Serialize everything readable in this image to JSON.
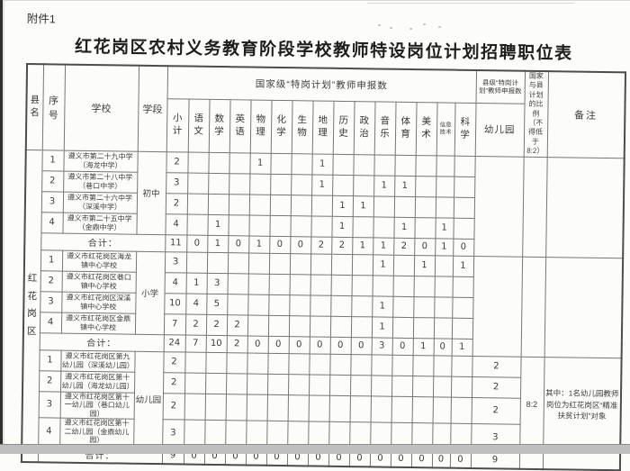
{
  "page": {
    "attachment_label": "附件1",
    "title": "红花岗区农村义务教育阶段学校教师特设岗位计划招聘职位表"
  },
  "table": {
    "header": {
      "county": "县名",
      "serial": "序号",
      "school": "学校",
      "stage": "学段",
      "national_group": "国家级“特岗计划”教师申报数",
      "subjects": [
        "小计",
        "语文",
        "数学",
        "英语",
        "物理",
        "化学",
        "生物",
        "地理",
        "历史",
        "政治",
        "音乐",
        "体育",
        "美术",
        "信息技术",
        "科学"
      ],
      "county_group": "县级“特岗计划”教师申报数",
      "kindergarten": "幼儿园",
      "ratio": "国家与县计划的比例（不得低于8:2）",
      "remark": "备注"
    },
    "county_name": "红花岗区",
    "sections": [
      {
        "stage": "初中",
        "rows": [
          {
            "no": "1",
            "school": "遵义市第二十九中学（海龙中学）",
            "values": [
              "2",
              "",
              "",
              "",
              "1",
              "",
              "",
              "1",
              "",
              "",
              "",
              "",
              "",
              "",
              ""
            ],
            "kg": ""
          },
          {
            "no": "2",
            "school": "遵义市第二十八中学（巷口中学）",
            "values": [
              "3",
              "",
              "",
              "",
              "",
              "",
              "",
              "1",
              "",
              "",
              "1",
              "1",
              "",
              "",
              ""
            ],
            "kg": ""
          },
          {
            "no": "3",
            "school": "遵义市第二十六中学（深溪中学）",
            "values": [
              "2",
              "",
              "",
              "",
              "",
              "",
              "",
              "",
              "1",
              "1",
              "",
              "",
              "",
              "",
              ""
            ],
            "kg": ""
          },
          {
            "no": "4",
            "school": "遵义市第二十五中学（金鼎中学）",
            "values": [
              "4",
              "",
              "1",
              "",
              "",
              "",
              "",
              "",
              "1",
              "",
              "",
              "1",
              "",
              "1",
              ""
            ],
            "kg": ""
          }
        ],
        "total_label": "合计：",
        "total": [
          "11",
          "0",
          "1",
          "0",
          "1",
          "0",
          "0",
          "2",
          "2",
          "1",
          "1",
          "2",
          "0",
          "1",
          "0"
        ],
        "total_kg": "",
        "ratio": "",
        "remark": ""
      },
      {
        "stage": "小学",
        "rows": [
          {
            "no": "1",
            "school": "遵义市红花岗区海龙镇中心学校",
            "values": [
              "3",
              "",
              "",
              "",
              "",
              "",
              "",
              "",
              "",
              "",
              "1",
              "",
              "1",
              "",
              "1"
            ],
            "kg": ""
          },
          {
            "no": "2",
            "school": "遵义市红花岗区巷口镇中心学校",
            "values": [
              "4",
              "1",
              "3",
              "",
              "",
              "",
              "",
              "",
              "",
              "",
              "",
              "",
              "",
              "",
              ""
            ],
            "kg": ""
          },
          {
            "no": "3",
            "school": "遵义市红花岗区深溪镇中心学校",
            "values": [
              "10",
              "4",
              "5",
              "",
              "",
              "",
              "",
              "",
              "",
              "",
              "1",
              "",
              "",
              "",
              ""
            ],
            "kg": ""
          },
          {
            "no": "4",
            "school": "遵义市红花岗区金鼎镇中心学校",
            "values": [
              "7",
              "2",
              "2",
              "2",
              "",
              "",
              "",
              "",
              "",
              "",
              "1",
              "",
              "",
              "",
              ""
            ],
            "kg": ""
          }
        ],
        "total_label": "合计：",
        "total": [
          "24",
          "7",
          "10",
          "2",
          "0",
          "0",
          "0",
          "0",
          "0",
          "0",
          "3",
          "0",
          "1",
          "0",
          "1"
        ],
        "total_kg": "",
        "ratio": "",
        "remark": ""
      },
      {
        "stage": "幼儿园",
        "rows": [
          {
            "no": "1",
            "school": "遵义市红花岗区第九幼儿园（深溪幼儿园）",
            "values": [
              "2",
              "",
              "",
              "",
              "",
              "",
              "",
              "",
              "",
              "",
              "",
              "",
              "",
              "",
              ""
            ],
            "kg": "2"
          },
          {
            "no": "2",
            "school": "遵义市红花岗区第十幼儿园（海龙幼儿园）",
            "values": [
              "2",
              "",
              "",
              "",
              "",
              "",
              "",
              "",
              "",
              "",
              "",
              "",
              "",
              "",
              ""
            ],
            "kg": "2"
          },
          {
            "no": "3",
            "school": "遵义市红花岗区第十一幼儿园（巷口幼儿园）",
            "values": [
              "2",
              "",
              "",
              "",
              "",
              "",
              "",
              "",
              "",
              "",
              "",
              "",
              "",
              "",
              ""
            ],
            "kg": "2"
          },
          {
            "no": "4",
            "school": "遵义市红花岗区第十二幼儿园（金鼎幼儿园）",
            "values": [
              "3",
              "",
              "",
              "",
              "",
              "",
              "",
              "",
              "",
              "",
              "",
              "",
              "",
              "",
              ""
            ],
            "kg": "3"
          }
        ],
        "total_label": "合计：",
        "total": [
          "9",
          "0",
          "0",
          "0",
          "0",
          "0",
          "0",
          "0",
          "0",
          "0",
          "0",
          "0",
          "0",
          "0",
          "0"
        ],
        "total_kg": "9",
        "ratio": "8:2",
        "remark": "其中：1名幼儿园教师岗位为红花岗区“精准扶贫计划”对象"
      }
    ]
  }
}
